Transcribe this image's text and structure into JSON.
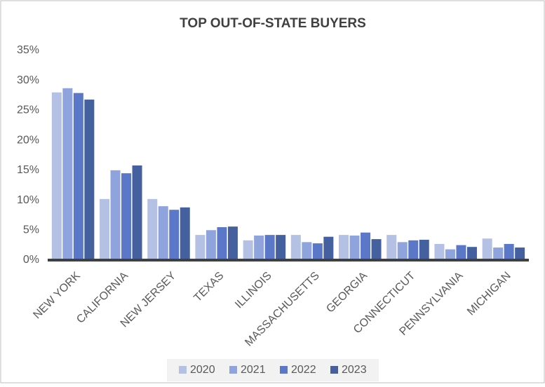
{
  "chart_data": {
    "type": "bar",
    "title": "TOP OUT-OF-STATE BUYERS",
    "categories": [
      "NEW YORK",
      "CALIFORNIA",
      "NEW JERSEY",
      "TEXAS",
      "ILLINOIS",
      "MASSACHUSETTS",
      "GEORGIA",
      "CONNECTICUT",
      "PENNSYLVANIA",
      "MICHIGAN"
    ],
    "series": [
      {
        "name": "2020",
        "color": "#b4c0e4",
        "values": [
          28.0,
          10.2,
          10.2,
          4.2,
          3.3,
          4.2,
          4.2,
          4.2,
          2.7,
          3.6
        ]
      },
      {
        "name": "2021",
        "color": "#8fa3dc",
        "values": [
          28.7,
          15.0,
          9.0,
          5.0,
          4.1,
          3.0,
          4.1,
          3.0,
          1.8,
          2.1
        ]
      },
      {
        "name": "2022",
        "color": "#5b78c8",
        "values": [
          27.9,
          14.5,
          8.4,
          5.5,
          4.2,
          2.8,
          4.6,
          3.3,
          2.5,
          2.7
        ]
      },
      {
        "name": "2023",
        "color": "#44609f",
        "values": [
          26.8,
          15.8,
          8.8,
          5.6,
          4.2,
          3.9,
          3.5,
          3.4,
          2.2,
          2.1
        ]
      }
    ],
    "ylim": [
      0,
      35
    ],
    "yticks": [
      {
        "value": 0,
        "label": "0%"
      },
      {
        "value": 5,
        "label": "5%"
      },
      {
        "value": 10,
        "label": "10%"
      },
      {
        "value": 15,
        "label": "15%"
      },
      {
        "value": 20,
        "label": "20%"
      },
      {
        "value": 25,
        "label": "25%"
      },
      {
        "value": 30,
        "label": "30%"
      },
      {
        "value": 35,
        "label": "35%"
      }
    ],
    "grid": false,
    "legend": "bottom"
  }
}
